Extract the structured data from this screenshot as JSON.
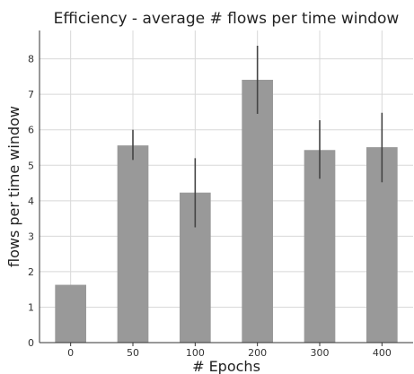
{
  "chart_data": {
    "type": "bar",
    "title": "Efficiency - average # flows per time window",
    "xlabel": "# Epochs",
    "ylabel": "flows per time window",
    "categories": [
      "0",
      "50",
      "100",
      "200",
      "300",
      "400"
    ],
    "values": [
      1.63,
      5.56,
      4.23,
      7.41,
      5.43,
      5.51
    ],
    "error_low": [
      1.63,
      5.15,
      3.25,
      6.45,
      4.62,
      4.52
    ],
    "error_high": [
      1.63,
      6.0,
      5.2,
      8.37,
      6.27,
      6.48
    ],
    "ylim": [
      0,
      8.8
    ],
    "yticks": [
      0,
      1,
      2,
      3,
      4,
      5,
      6,
      7,
      8
    ],
    "grid": true,
    "colors": {
      "bar": "#999999",
      "error_bar": "#444444",
      "grid": "#d8d8d8",
      "axis": "#333333"
    }
  }
}
